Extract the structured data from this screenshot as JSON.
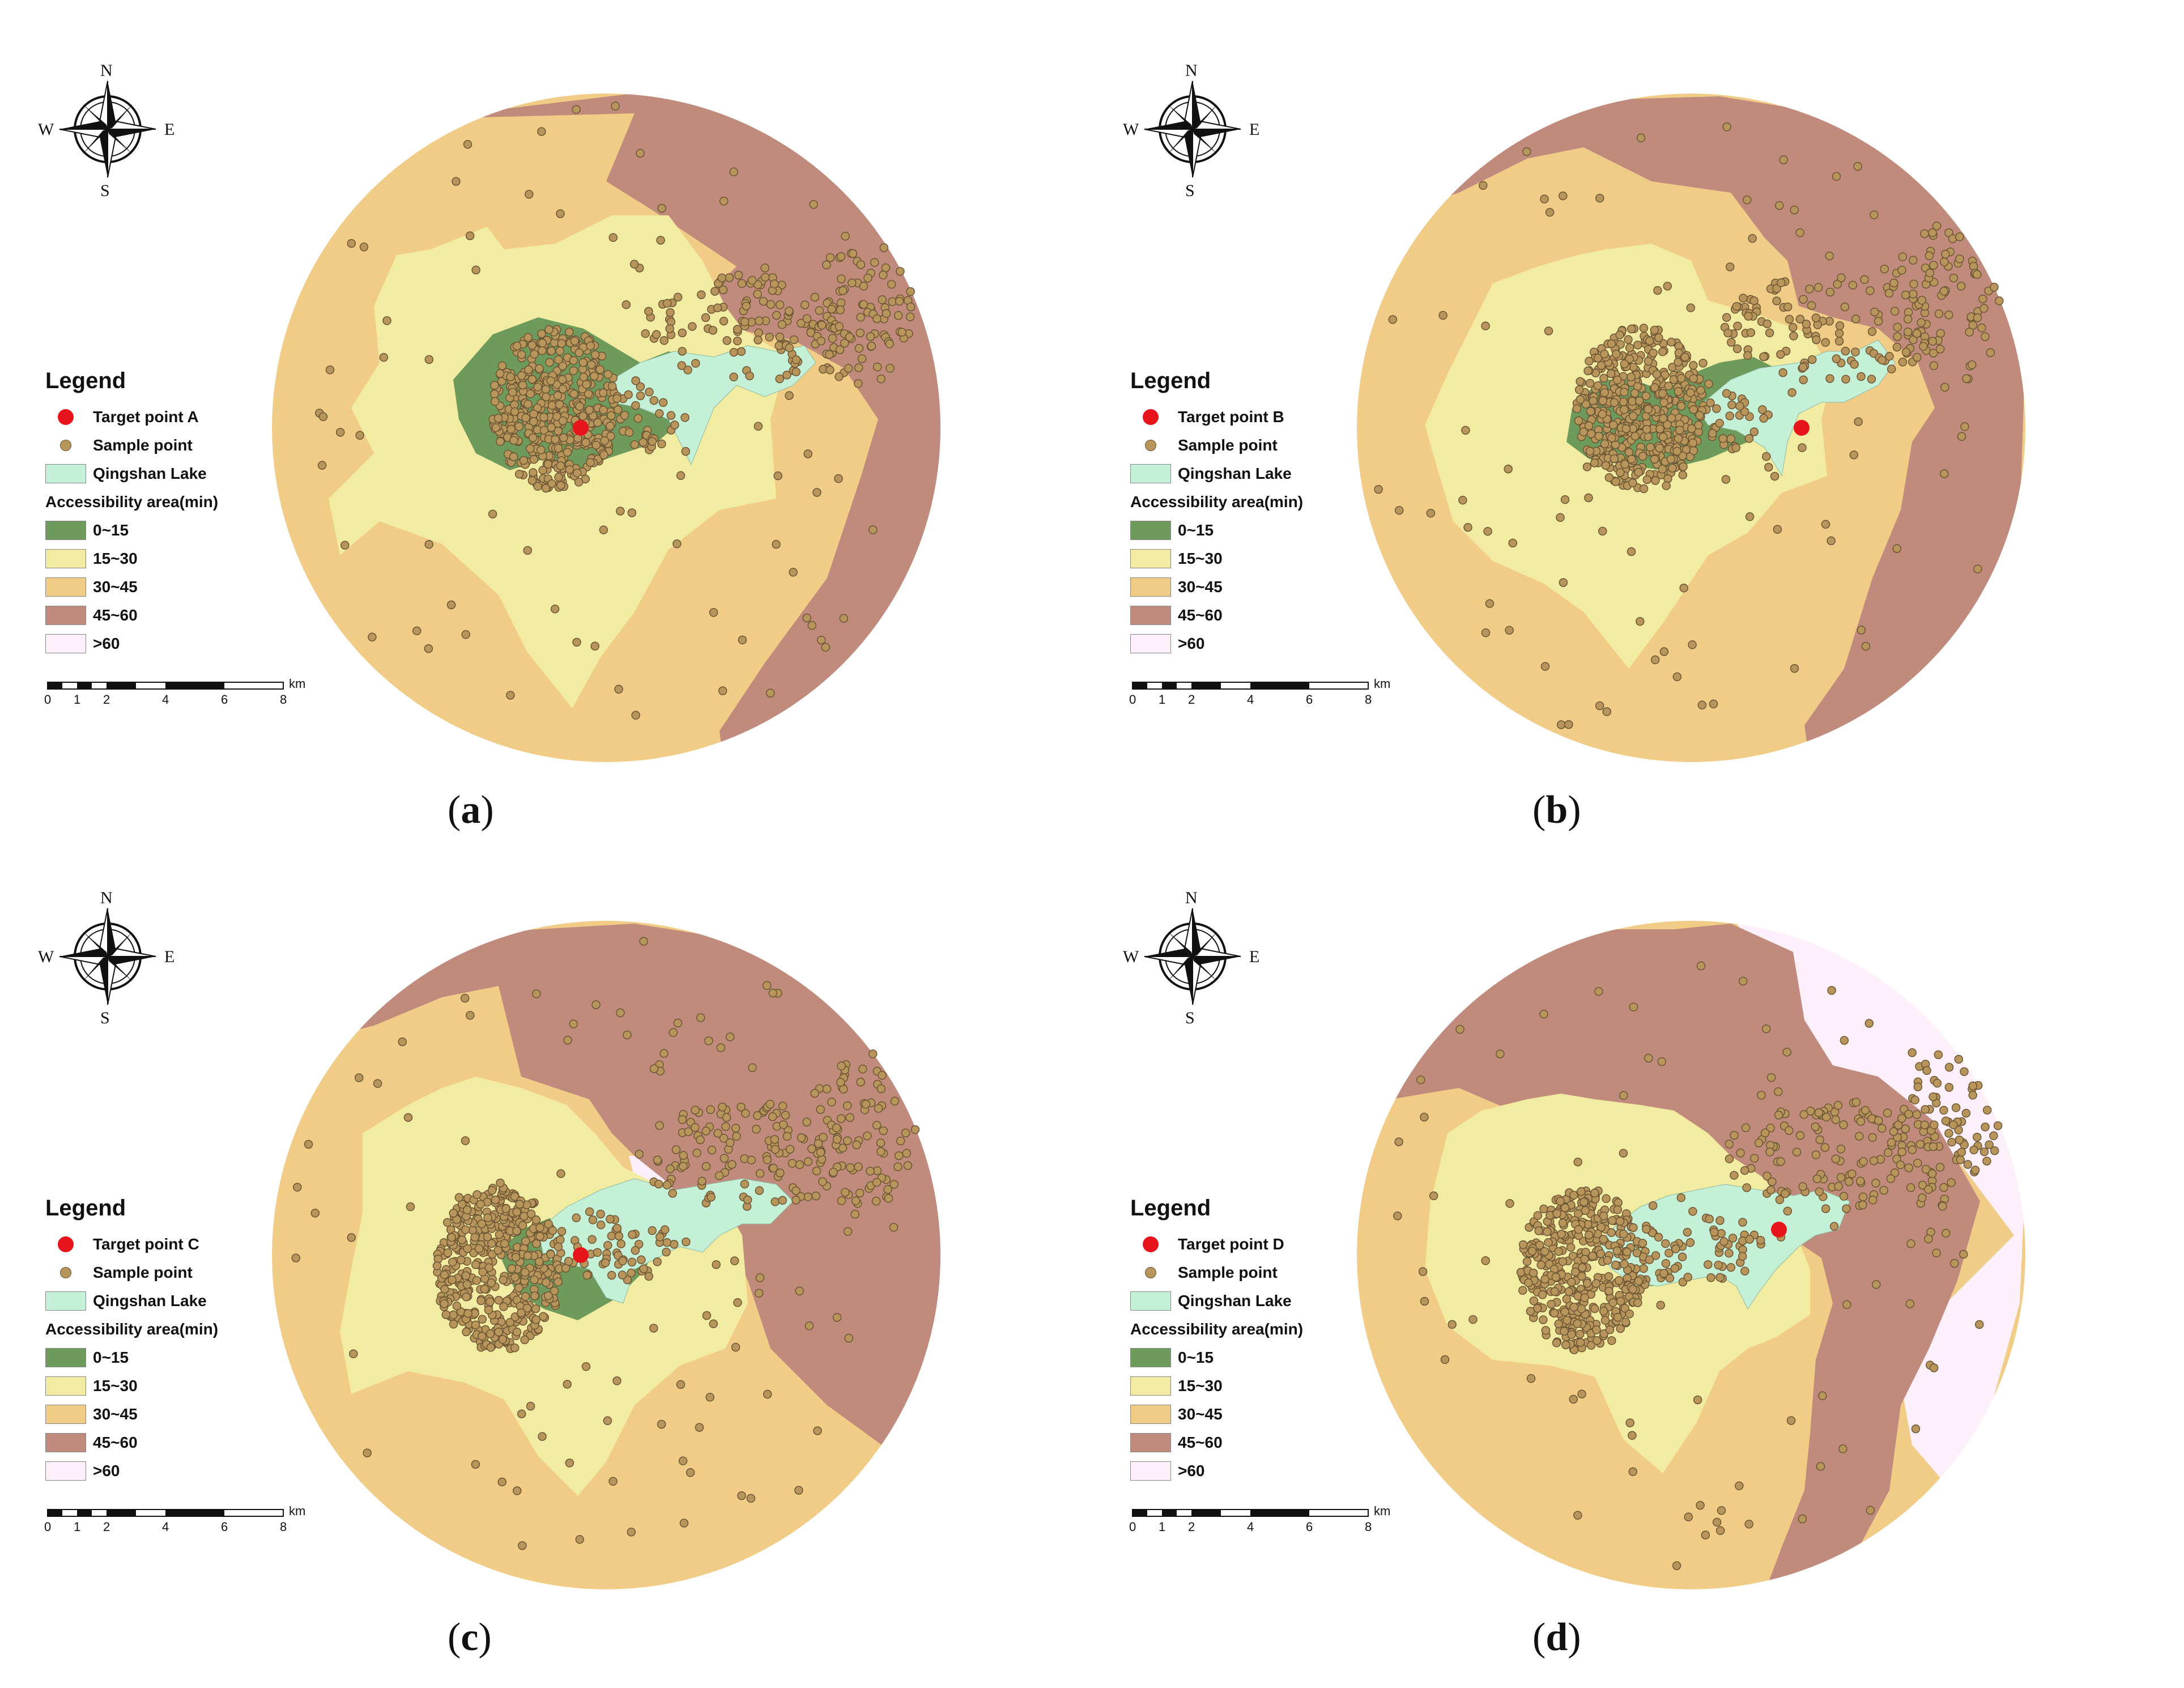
{
  "panels": [
    {
      "caption_letter": "a",
      "target_label": "Target point A",
      "zone_style": "a"
    },
    {
      "caption_letter": "b",
      "target_label": "Target point B",
      "zone_style": "b"
    },
    {
      "caption_letter": "c",
      "target_label": "Target point C",
      "zone_style": "c"
    },
    {
      "caption_letter": "d",
      "target_label": "Target point D",
      "zone_style": "d"
    }
  ],
  "legend": {
    "title": "Legend",
    "sample_label": "Sample point",
    "lake_label": "Qingshan Lake",
    "area_title": "Accessibility area(min)",
    "classes": [
      {
        "label": "0~15",
        "color": "#6e9a5c"
      },
      {
        "label": "15~30",
        "color": "#f2eba2"
      },
      {
        "label": "30~45",
        "color": "#f0cc86"
      },
      {
        "label": "45~60",
        "color": "#c08a7c"
      },
      {
        "label": ">60",
        "color": "#fdf0fa"
      }
    ]
  },
  "colors": {
    "target": "#e8141b",
    "sample_fill": "#b8955a",
    "sample_stroke": "#6b5534",
    "lake": "#c5f0d8"
  },
  "compass": {
    "n": "N",
    "s": "S",
    "e": "E",
    "w": "W"
  },
  "scale": {
    "ticks": [
      "0",
      "1",
      "2",
      "4",
      "6",
      "8"
    ],
    "unit": "km"
  }
}
